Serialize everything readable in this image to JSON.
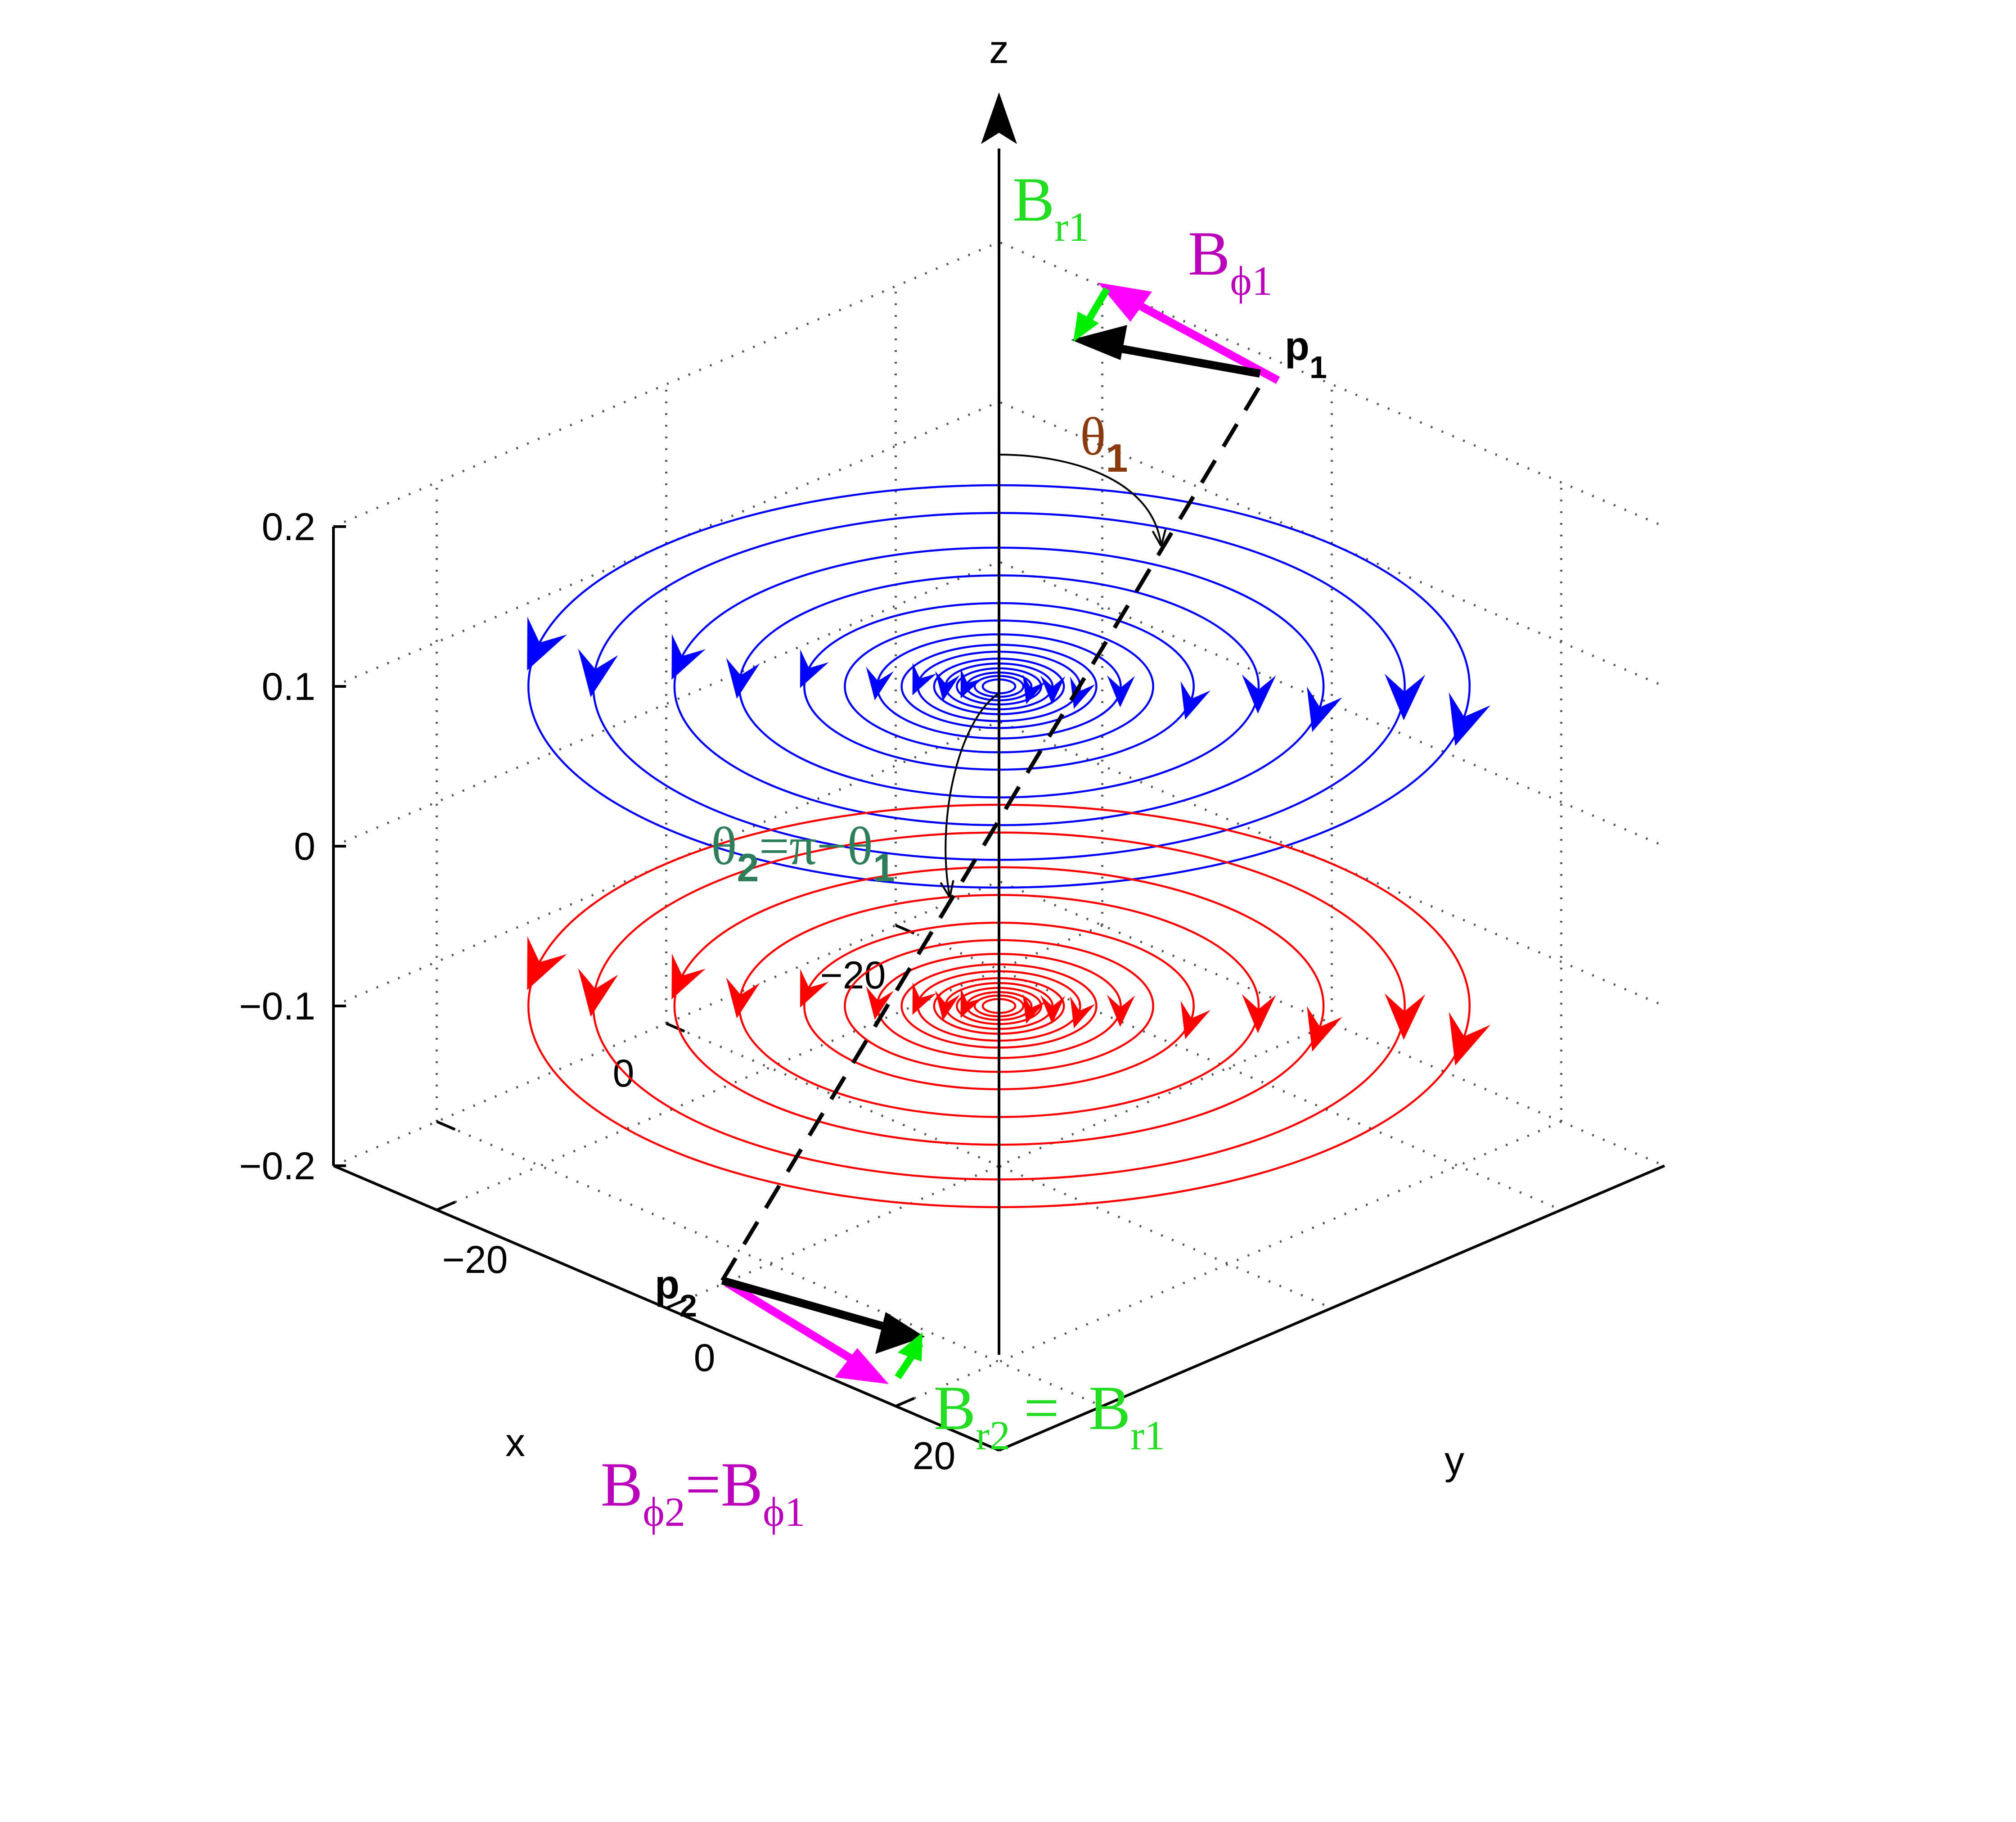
{
  "axes": {
    "z_name": "z",
    "x_name": "x",
    "y_name": "y",
    "z_ticks": [
      {
        "value": 0.2,
        "label": "0.2"
      },
      {
        "value": 0.1,
        "label": "0.1"
      },
      {
        "value": 0,
        "label": "0"
      },
      {
        "value": -0.1,
        "label": "−0.1"
      },
      {
        "value": -0.2,
        "label": "−0.2"
      }
    ],
    "x_ticks": [
      {
        "value": -20,
        "label": "−20"
      },
      {
        "value": 0,
        "label": "0"
      },
      {
        "value": 20,
        "label": ""
      }
    ],
    "y_ticks": [
      {
        "value": -20,
        "label": "−20"
      },
      {
        "value": 0,
        "label": "0"
      },
      {
        "value": 20,
        "label": "20"
      }
    ],
    "grid": "dotted"
  },
  "labels": {
    "br1": {
      "base": "B",
      "sub": "r1"
    },
    "bphi1": {
      "base": "B",
      "sub": "ϕ1"
    },
    "p1": {
      "base": "p",
      "sub": "1"
    },
    "theta1": {
      "base": "θ",
      "sub": "1"
    },
    "theta2": {
      "t2": "θ",
      "s2": "2",
      "mid": "=π−θ",
      "s1": "1"
    },
    "p2": {
      "base": "p",
      "sub": "2"
    },
    "br2": {
      "b1": "B",
      "s1": "r2",
      "eq": "= ",
      "b2": "B",
      "s2": "r1"
    },
    "bphi2": {
      "b1": "B",
      "s1": "ϕ2",
      "eq": "=",
      "b2": "B",
      "s2": "ϕ1"
    }
  },
  "colors": {
    "upper_field": "#0000ff",
    "lower_field": "#ff0000",
    "radial_vector": "#00ee00",
    "azimuthal_vector": "#ff00ff",
    "position_vector": "#000000",
    "theta1_label": "#8b3a0f",
    "theta2_label": "#2e7d5b",
    "br_label": "#22dd22",
    "bphi_label": "#bb00bb"
  },
  "fields": {
    "upper_z": 0.1,
    "lower_z": -0.1,
    "ring_radii": [
      1,
      1.5,
      2,
      2.6,
      3.3,
      4,
      5,
      6,
      7.5,
      9.5,
      12,
      16,
      20,
      25,
      29
    ],
    "arrow_radii": [
      2,
      3.3,
      5,
      7.5,
      12,
      16,
      20,
      25,
      29
    ]
  }
}
